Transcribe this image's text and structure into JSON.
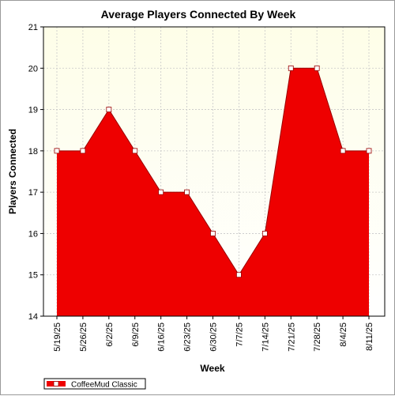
{
  "chart_data": {
    "type": "area",
    "title": "Average Players Connected By Week",
    "xlabel": "Week",
    "ylabel": "Players Connected",
    "categories": [
      "5/19/25",
      "5/26/25",
      "6/2/25",
      "6/9/25",
      "6/16/25",
      "6/23/25",
      "6/30/25",
      "7/7/25",
      "7/14/25",
      "7/21/25",
      "7/28/25",
      "8/4/25",
      "8/11/25"
    ],
    "series": [
      {
        "name": "CoffeeMud Classic",
        "values": [
          18,
          18,
          19,
          18,
          17,
          17,
          16,
          15,
          16,
          20,
          20,
          18,
          18
        ]
      }
    ],
    "ylim": [
      14,
      21
    ],
    "yticks": [
      "14",
      "15",
      "16",
      "17",
      "18",
      "19",
      "20",
      "21"
    ],
    "grid": true,
    "legend": "bottom-left",
    "colors": {
      "fill": "#ee0000",
      "line": "#9a0000",
      "plot_bg_top": "#fefee8",
      "plot_bg_bottom": "#ffffff",
      "grid": "#c8c8c8"
    }
  }
}
